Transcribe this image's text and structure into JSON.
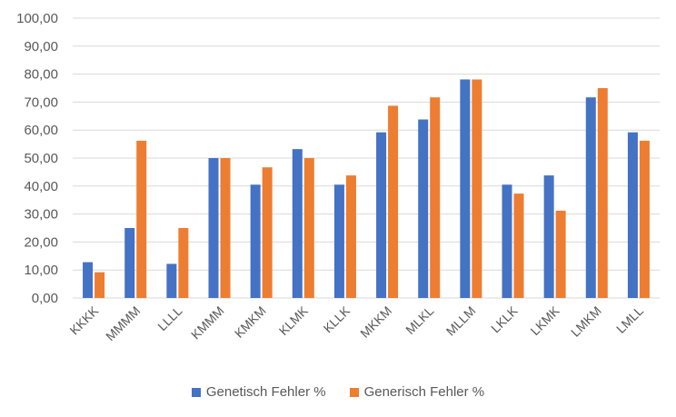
{
  "chart_data": {
    "type": "bar",
    "categories": [
      "KKKK",
      "MMMM",
      "LLLL",
      "KMMM",
      "KMKM",
      "KLMK",
      "KLLK",
      "MKKM",
      "MLKL",
      "MLLM",
      "LKLK",
      "LKMK",
      "LMKM",
      "LMLL"
    ],
    "series": [
      {
        "name": "Genetisch Fehler %",
        "color": "#4472C4",
        "values": [
          12.8,
          25.0,
          12.2,
          50.0,
          40.5,
          53.2,
          40.5,
          59.2,
          63.8,
          78.1,
          40.5,
          43.8,
          71.7,
          59.2
        ]
      },
      {
        "name": "Generisch Fehler %",
        "color": "#ED7D31",
        "values": [
          9.2,
          56.2,
          25.0,
          50.0,
          46.7,
          50.0,
          43.8,
          68.7,
          71.7,
          78.1,
          37.3,
          31.2,
          75.0,
          56.2
        ]
      }
    ],
    "y_ticks": [
      "0,00",
      "10,00",
      "20,00",
      "30,00",
      "40,00",
      "50,00",
      "60,00",
      "70,00",
      "80,00",
      "90,00",
      "100,00"
    ],
    "ylim": [
      0,
      100
    ],
    "grid": true,
    "legend_position": "bottom"
  }
}
